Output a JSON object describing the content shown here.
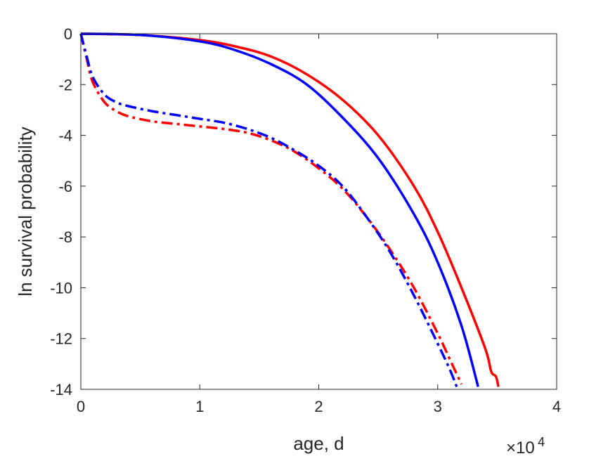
{
  "chart_data": {
    "type": "line",
    "title": "",
    "xlabel": "age, d",
    "ylabel": "ln survival probability",
    "x_exponent": {
      "base": "×10",
      "power": "4"
    },
    "xlim": [
      0,
      40000
    ],
    "ylim": [
      -14,
      0
    ],
    "xticks": [
      0,
      10000,
      20000,
      30000,
      40000
    ],
    "xtick_labels": [
      "0",
      "1",
      "2",
      "3",
      "4"
    ],
    "yticks": [
      0,
      -2,
      -4,
      -6,
      -8,
      -10,
      -12,
      -14
    ],
    "ytick_labels": [
      "0",
      "-2",
      "-4",
      "-6",
      "-8",
      "-10",
      "-12",
      "-14"
    ],
    "grid": false,
    "legend": "none",
    "series": [
      {
        "color": "#ff0000",
        "style": "solid",
        "x": [
          0,
          5000,
          10000,
          13000,
          16000,
          19000,
          22000,
          25000,
          28000,
          30000,
          32000,
          34000,
          34500,
          34900,
          35100
        ],
        "y": [
          0,
          -0.05,
          -0.25,
          -0.5,
          -0.9,
          -1.6,
          -2.6,
          -4.0,
          -6.0,
          -7.8,
          -10.0,
          -12.4,
          -13.3,
          -13.5,
          -13.9
        ]
      },
      {
        "color": "#0000ff",
        "style": "solid",
        "x": [
          0,
          5000,
          10000,
          13000,
          16000,
          19000,
          22000,
          25000,
          28000,
          30000,
          32000,
          33400
        ],
        "y": [
          0,
          -0.05,
          -0.3,
          -0.65,
          -1.2,
          -2.0,
          -3.3,
          -4.9,
          -7.1,
          -9.0,
          -11.5,
          -13.9
        ]
      },
      {
        "color": "#ff0000",
        "style": "dashdot",
        "x": [
          0,
          500,
          1000,
          2000,
          3000,
          4000,
          6000,
          8000,
          10000,
          12000,
          14000,
          16000,
          18000,
          20000,
          22000,
          24000,
          26000,
          28000,
          30000,
          31000,
          32000
        ],
        "y": [
          0,
          -1.0,
          -1.9,
          -2.7,
          -3.05,
          -3.25,
          -3.45,
          -3.55,
          -3.65,
          -3.75,
          -3.9,
          -4.2,
          -4.65,
          -5.3,
          -6.1,
          -7.2,
          -8.5,
          -10.0,
          -11.8,
          -12.8,
          -13.8
        ]
      },
      {
        "color": "#0000ff",
        "style": "dashdot",
        "x": [
          0,
          500,
          1000,
          2000,
          3000,
          4000,
          6000,
          8000,
          10000,
          12000,
          14000,
          16000,
          18000,
          20000,
          22000,
          24000,
          26000,
          28000,
          30000,
          31000,
          31600
        ],
        "y": [
          0,
          -0.9,
          -1.7,
          -2.4,
          -2.7,
          -2.85,
          -3.05,
          -3.2,
          -3.35,
          -3.5,
          -3.75,
          -4.1,
          -4.6,
          -5.2,
          -6.0,
          -7.2,
          -8.6,
          -10.3,
          -12.2,
          -13.2,
          -13.9
        ]
      }
    ]
  }
}
